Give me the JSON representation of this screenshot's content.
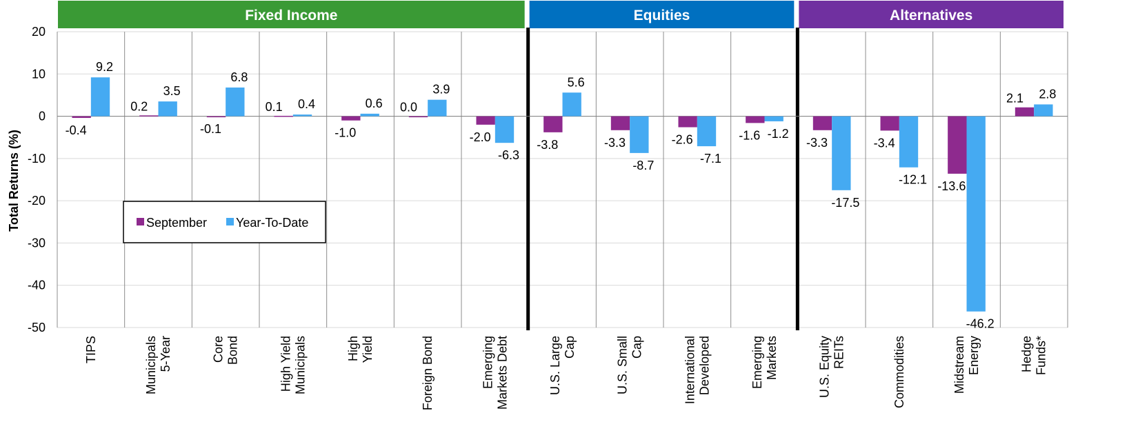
{
  "chart_data": {
    "type": "bar",
    "title": "",
    "xlabel": "",
    "ylabel": "Total Returns (%)",
    "ylim": [
      -50,
      20
    ],
    "yticks": [
      20,
      10,
      0,
      -10,
      -20,
      -30,
      -40,
      -50
    ],
    "legend_position": "upper-left-inside",
    "groups": [
      {
        "name": "Fixed Income",
        "color": "#3a9a35",
        "categories": [
          "TIPS",
          "Municipals 5-Year",
          "Core Bond",
          "High Yield Municipals",
          "High Yield",
          "Foreign Bond",
          "Emerging Markets Debt"
        ]
      },
      {
        "name": "Equities",
        "color": "#0070c0",
        "categories": [
          "U.S. Large Cap",
          "U.S. Small Cap",
          "International Developed",
          "Emerging Markets"
        ]
      },
      {
        "name": "Alternatives",
        "color": "#7030a0",
        "categories": [
          "U.S. Equity REITs",
          "Commodities",
          "Midstream Energy",
          "Hedge Funds*"
        ]
      }
    ],
    "categories": [
      [
        "TIPS"
      ],
      [
        "Municipals",
        "5-Year"
      ],
      [
        "Core",
        "Bond"
      ],
      [
        "High Yield",
        "Municipals"
      ],
      [
        "High",
        "Yield"
      ],
      [
        "Foreign Bond"
      ],
      [
        "Emerging",
        "Markets Debt"
      ],
      [
        "U.S. Large",
        "Cap"
      ],
      [
        "U.S. Small",
        "Cap"
      ],
      [
        "International",
        "Developed"
      ],
      [
        "Emerging",
        "Markets"
      ],
      [
        "U.S. Equity",
        "REITs"
      ],
      [
        "Commodities"
      ],
      [
        "Midstream",
        "Energy"
      ],
      [
        "Hedge",
        "Funds*"
      ]
    ],
    "series": [
      {
        "name": "September",
        "color": "#8e2a8e",
        "values": [
          -0.4,
          0.2,
          -0.1,
          0.1,
          -1.0,
          0.0,
          -2.0,
          -3.8,
          -3.3,
          -2.6,
          -1.6,
          -3.3,
          -3.4,
          -13.6,
          2.1
        ],
        "labels": [
          "-0.4",
          "0.2",
          "-0.1",
          "0.1",
          "-1.0",
          "0.0",
          "-2.0",
          "-3.8",
          "-3.3",
          "-2.6",
          "-1.6",
          "-3.3",
          "-3.4",
          "-13.6",
          "2.1"
        ]
      },
      {
        "name": "Year-To-Date",
        "color": "#45aaf2",
        "values": [
          9.2,
          3.5,
          6.8,
          0.4,
          0.6,
          3.9,
          -6.3,
          5.6,
          -8.7,
          -7.1,
          -1.2,
          -17.5,
          -12.1,
          -46.2,
          2.8
        ],
        "labels": [
          "9.2",
          "3.5",
          "6.8",
          "0.4",
          "0.6",
          "3.9",
          "-6.3",
          "5.6",
          "-8.7",
          "-7.1",
          "-1.2",
          "-17.5",
          "-12.1",
          "-46.2",
          "2.8"
        ]
      }
    ]
  }
}
